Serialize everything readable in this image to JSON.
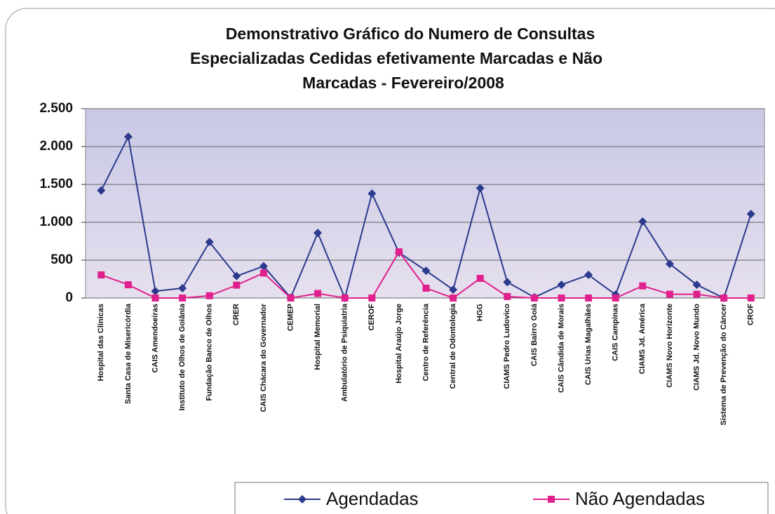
{
  "chart_data": {
    "type": "line",
    "title": [
      "Demonstrativo Gráfico do Numero de Consultas",
      "Especializadas Cedidas efetivamente Marcadas e Não",
      "Marcadas - Fevereiro/2008"
    ],
    "categories": [
      "Hospital das Clínicas",
      "Santa Casa de Misericórdia",
      "CAIS Amendoeiras",
      "Instituto de Olhos de Goiânia",
      "Fundação Banco de Olhos",
      "CRER",
      "CAIS Chácara do Governador",
      "CEMEP",
      "Hospital Memorial",
      "Ambulatório de Psiquiatria",
      "CEROF",
      "Hospital Araújo Jorge",
      "Centro de Referência",
      "Central de Odontologia",
      "HGG",
      "CIAMS Pedro Ludovico",
      "CAIS Bairro Goiá",
      "CAIS Cândida de Morais",
      "CAIS Urias Magalhães",
      "CAIS Campinas",
      "CIAMS Jd. América",
      "CIAMS Novo Horizonte",
      "CIAMS Jd. Novo Mundo",
      "Sistema de Prevenção do Câncer",
      "CROF"
    ],
    "series": [
      {
        "name": "Agendadas",
        "color": "#2b3a8c",
        "marker": "diamond",
        "values": [
          1420,
          2130,
          90,
          130,
          740,
          290,
          420,
          5,
          860,
          0,
          1380,
          600,
          360,
          110,
          1450,
          210,
          10,
          175,
          305,
          45,
          1010,
          450,
          175,
          0,
          1110
        ]
      },
      {
        "name": "Não Agendadas",
        "color": "#e0208c",
        "marker": "square",
        "values": [
          305,
          175,
          0,
          0,
          30,
          170,
          330,
          0,
          60,
          0,
          0,
          610,
          130,
          0,
          260,
          20,
          0,
          0,
          0,
          0,
          160,
          50,
          50,
          0,
          0
        ]
      }
    ],
    "ylim": [
      0,
      2500
    ],
    "yticks": [
      0,
      500,
      {
        "value": 1000,
        "label": "1.000"
      },
      {
        "value": 1500,
        "label": "1.500"
      },
      {
        "value": 2000,
        "label": "2.000"
      },
      {
        "value": 2500,
        "label": "2.500"
      }
    ],
    "grid": true,
    "legend": "bottom"
  }
}
